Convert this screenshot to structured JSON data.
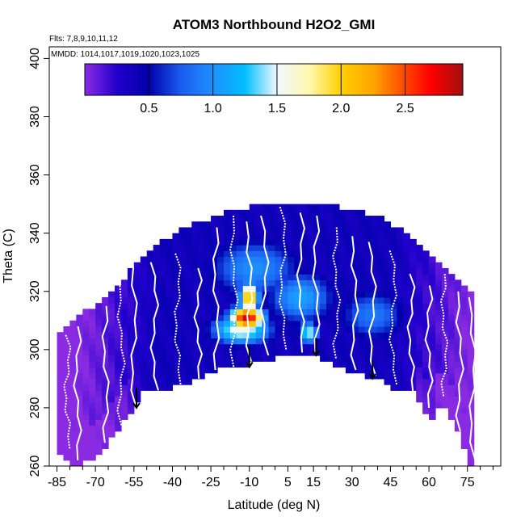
{
  "chart_data": {
    "type": "heatmap",
    "title": "ATOM3 Northbound H2O2_GMI",
    "annotations": {
      "flights": "Flts: 7,8,9,10,11,12",
      "dates": "MMDD: 1014,1017,1019,1020,1023,1025"
    },
    "xlabel": "Latitude (deg N)",
    "ylabel": "Theta (C)",
    "xlim": [
      -88,
      88
    ],
    "ylim": [
      260,
      404
    ],
    "x_ticks": [
      -85,
      -70,
      -55,
      -40,
      -25,
      -10,
      5,
      15,
      30,
      45,
      60,
      75
    ],
    "x_minor_ticks": [
      -80,
      -75,
      -65,
      -60,
      -50,
      -45,
      -35,
      -30,
      -20,
      -15,
      -5,
      0,
      10,
      20,
      25,
      35,
      40,
      50,
      55,
      65,
      70,
      80,
      85
    ],
    "y_ticks": [
      260,
      280,
      300,
      320,
      340,
      360,
      380,
      400
    ],
    "colorbar": {
      "range": [
        0,
        2.95
      ],
      "ticks": [
        0.5,
        1.0,
        1.5,
        2.0,
        2.5
      ],
      "tick_labels": [
        "0.5",
        "1.0",
        "1.5",
        "2.0",
        "2.5"
      ],
      "stops": [
        {
          "v": 0.0,
          "color": "#8a2be2"
        },
        {
          "v": 0.25,
          "color": "#2200cc"
        },
        {
          "v": 0.5,
          "color": "#0000aa"
        },
        {
          "v": 0.75,
          "color": "#1a5cf0"
        },
        {
          "v": 1.0,
          "color": "#1e90ff"
        },
        {
          "v": 1.25,
          "color": "#00bfff"
        },
        {
          "v": 1.5,
          "color": "#f0f8ff"
        },
        {
          "v": 1.75,
          "color": "#fff8b0"
        },
        {
          "v": 2.0,
          "color": "#ffd000"
        },
        {
          "v": 2.25,
          "color": "#ffa500"
        },
        {
          "v": 2.5,
          "color": "#ff4500"
        },
        {
          "v": 2.7,
          "color": "#ff0000"
        },
        {
          "v": 2.95,
          "color": "#a01010"
        }
      ]
    },
    "surface_outline": [
      [
        -85,
        266
      ],
      [
        -78,
        260
      ],
      [
        -70,
        263
      ],
      [
        -63,
        270
      ],
      [
        -54,
        281
      ],
      [
        -50,
        287
      ],
      [
        -42,
        286
      ],
      [
        -30,
        290
      ],
      [
        -20,
        294
      ],
      [
        -10,
        295
      ],
      [
        0,
        297
      ],
      [
        10,
        299
      ],
      [
        15,
        298
      ],
      [
        20,
        296
      ],
      [
        30,
        292
      ],
      [
        40,
        290
      ],
      [
        48,
        286
      ],
      [
        55,
        285
      ],
      [
        60,
        275
      ],
      [
        65,
        283
      ],
      [
        70,
        275
      ],
      [
        76,
        260
      ]
    ],
    "top_outline": [
      [
        -85,
        305
      ],
      [
        -80,
        309
      ],
      [
        -70,
        314
      ],
      [
        -60,
        322
      ],
      [
        -52,
        331
      ],
      [
        -45,
        336
      ],
      [
        -35,
        341
      ],
      [
        -20,
        346
      ],
      [
        -5,
        349
      ],
      [
        10,
        349
      ],
      [
        25,
        348
      ],
      [
        40,
        345
      ],
      [
        50,
        340
      ],
      [
        60,
        333
      ],
      [
        70,
        324
      ],
      [
        78,
        318
      ]
    ],
    "grid_x_step": 2.5,
    "grid_y_step": 2,
    "hotspots": [
      {
        "lat": -11,
        "theta": 311,
        "value": 2.85,
        "lat_sd": 5,
        "theta_sd": 3
      },
      {
        "lat": -10,
        "theta": 318,
        "value": 2.2,
        "lat_sd": 3,
        "theta_sd": 4
      },
      {
        "lat": -13,
        "theta": 307,
        "value": 1.6,
        "lat_sd": 9,
        "theta_sd": 4
      },
      {
        "lat": 13,
        "theta": 306,
        "value": 1.5,
        "lat_sd": 3,
        "theta_sd": 3
      },
      {
        "lat": 10,
        "theta": 318,
        "value": 1.1,
        "lat_sd": 10,
        "theta_sd": 7
      },
      {
        "lat": -8,
        "theta": 328,
        "value": 1.0,
        "lat_sd": 14,
        "theta_sd": 8
      },
      {
        "lat": 38,
        "theta": 312,
        "value": 0.9,
        "lat_sd": 10,
        "theta_sd": 7
      }
    ],
    "profiles": [
      {
        "lat": -81,
        "top": 305,
        "bottom": 266
      },
      {
        "lat": -77,
        "top": 308,
        "bottom": 262
      },
      {
        "lat": -66,
        "top": 315,
        "bottom": 268
      },
      {
        "lat": -60,
        "top": 322,
        "bottom": 274
      },
      {
        "lat": -55,
        "top": 334,
        "bottom": 280
      },
      {
        "lat": -47,
        "top": 330,
        "bottom": 286
      },
      {
        "lat": -38,
        "top": 333,
        "bottom": 288
      },
      {
        "lat": -30,
        "top": 328,
        "bottom": 290
      },
      {
        "lat": -23,
        "top": 342,
        "bottom": 293
      },
      {
        "lat": -16,
        "top": 346,
        "bottom": 294
      },
      {
        "lat": -10,
        "top": 344,
        "bottom": 296
      },
      {
        "lat": -4,
        "top": 346,
        "bottom": 298
      },
      {
        "lat": 3,
        "top": 349,
        "bottom": 300
      },
      {
        "lat": 10,
        "top": 347,
        "bottom": 299
      },
      {
        "lat": 16,
        "top": 346,
        "bottom": 298
      },
      {
        "lat": 24,
        "top": 342,
        "bottom": 297
      },
      {
        "lat": 31,
        "top": 339,
        "bottom": 293
      },
      {
        "lat": 38,
        "top": 337,
        "bottom": 291
      },
      {
        "lat": 46,
        "top": 334,
        "bottom": 288
      },
      {
        "lat": 53,
        "top": 326,
        "bottom": 285
      },
      {
        "lat": 60,
        "top": 322,
        "bottom": 280
      },
      {
        "lat": 66,
        "top": 326,
        "bottom": 284
      },
      {
        "lat": 72,
        "top": 320,
        "bottom": 272
      },
      {
        "lat": 77,
        "top": 318,
        "bottom": 262
      }
    ],
    "arrows": [
      {
        "lat": -54,
        "theta_top": 287,
        "theta_tip": 280
      },
      {
        "lat": -10,
        "theta_top": 301,
        "theta_tip": 294
      },
      {
        "lat": 16,
        "theta_top": 304,
        "theta_tip": 298
      },
      {
        "lat": 38,
        "theta_top": 296,
        "theta_tip": 290
      }
    ]
  }
}
